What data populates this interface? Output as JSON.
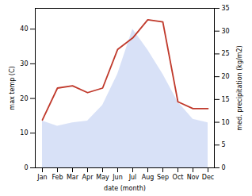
{
  "chart_data": {
    "type": "area",
    "xlabel": "date (month)",
    "ylabel": "max temp (C)",
    "y2label": "med. precipitation (kg/m2)",
    "categories": [
      "Jan",
      "Feb",
      "Mar",
      "Apr",
      "May",
      "Jun",
      "Jul",
      "Aug",
      "Sep",
      "Oct",
      "Nov",
      "Dec"
    ],
    "series": [
      {
        "type": "area",
        "color": "#b8c8f0",
        "values": [
          13.5,
          12.0,
          13.0,
          13.5,
          18.0,
          27.0,
          40.0,
          34.0,
          27.0,
          19.0,
          14.0,
          13.0
        ]
      },
      {
        "type": "line",
        "axis": "y2",
        "color": "#c0392b",
        "values": [
          10.5,
          17.5,
          18.0,
          16.5,
          17.5,
          26.0,
          28.5,
          32.5,
          32.0,
          14.5,
          13.0,
          13.0
        ]
      }
    ],
    "ylim": [
      0,
      46
    ],
    "yticks": [
      0,
      10,
      20,
      30,
      40
    ],
    "y2lim": [
      0,
      35
    ],
    "y2ticks": [
      0,
      5,
      10,
      15,
      20,
      25,
      30,
      35
    ]
  }
}
